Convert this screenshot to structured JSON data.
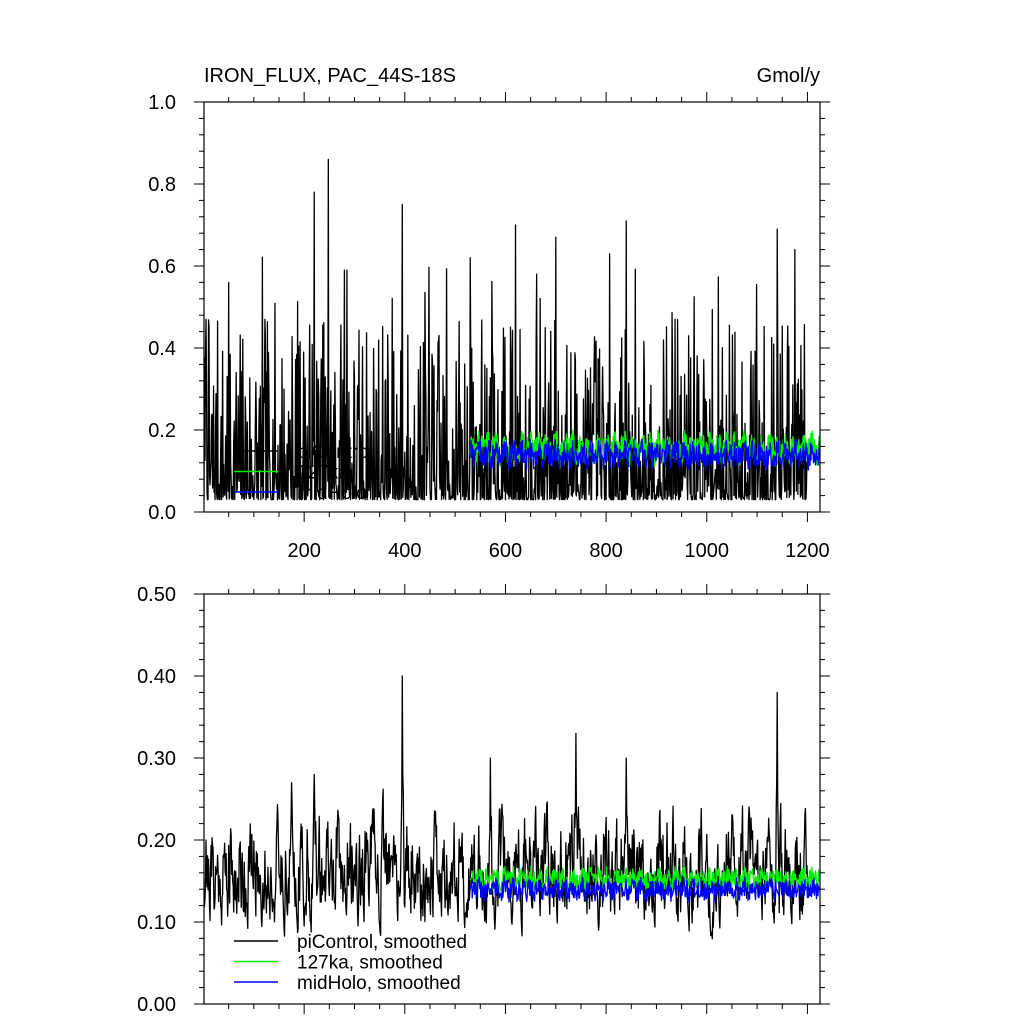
{
  "chart_data": [
    {
      "type": "line",
      "title": "IRON_FLUX, PAC_44S-18S",
      "units": "Gmol/y",
      "xlim": [
        1,
        1225
      ],
      "ylim": [
        0,
        1.0
      ],
      "x_ticks": [
        200,
        400,
        600,
        800,
        1000,
        1200
      ],
      "x_tick_labels": [
        "200",
        "400",
        "600",
        "800",
        "1000",
        "1200"
      ],
      "y_ticks": [
        0,
        0.2,
        0.4,
        0.6,
        0.8,
        1.0
      ],
      "y_tick_labels": [
        "0.0",
        "0.2",
        "0.4",
        "0.6",
        "0.8",
        "1.0"
      ],
      "legend": {
        "placement": "lower-left",
        "entries": [
          {
            "label": "piControl",
            "color": "#000000"
          },
          {
            "label": "127ka",
            "color": "#00ee00"
          },
          {
            "label": "midHolo",
            "color": "#0000ff"
          }
        ]
      },
      "series": [
        {
          "name": "piControl",
          "color": "#000000",
          "x_range": [
            1,
            1200
          ],
          "baseline": 0.09,
          "typical_range": [
            0.03,
            0.45
          ],
          "peaks": [
            [
              5,
              0.47
            ],
            [
              220,
              0.78
            ],
            [
              248,
              0.86
            ],
            [
              280,
              0.59
            ],
            [
              285,
              0.59
            ],
            [
              395,
              0.75
            ],
            [
              530,
              0.62
            ],
            [
              620,
              0.7
            ],
            [
              700,
              0.67
            ],
            [
              840,
              0.71
            ],
            [
              1140,
              0.69
            ],
            [
              1175,
              0.64
            ]
          ]
        },
        {
          "name": "127ka",
          "color": "#00ee00",
          "x_range": [
            530,
            1225
          ],
          "mean": 0.155,
          "amplitude": 0.035
        },
        {
          "name": "midHolo",
          "color": "#0000ff",
          "x_range": [
            530,
            1225
          ],
          "mean": 0.14,
          "amplitude": 0.03
        }
      ]
    },
    {
      "type": "line",
      "xlim": [
        1,
        1225
      ],
      "ylim": [
        0,
        0.5
      ],
      "x_ticks": [
        200,
        400,
        600,
        800,
        1000,
        1200
      ],
      "y_ticks": [
        0,
        0.1,
        0.2,
        0.3,
        0.4,
        0.5
      ],
      "y_tick_labels": [
        "0.00",
        "0.10",
        "0.20",
        "0.30",
        "0.40",
        "0.50"
      ],
      "legend": {
        "placement": "lower-left",
        "entries": [
          {
            "label": "piControl, smoothed",
            "color": "#000000"
          },
          {
            "label": "127ka, smoothed",
            "color": "#00ee00"
          },
          {
            "label": "midHolo, smoothed",
            "color": "#0000ff"
          }
        ]
      },
      "series": [
        {
          "name": "piControl, smoothed",
          "color": "#000000",
          "x_range": [
            1,
            1200
          ],
          "baseline": 0.15,
          "typical_range": [
            0.05,
            0.3
          ],
          "peaks": [
            [
              5,
              0.2
            ],
            [
              175,
              0.27
            ],
            [
              220,
              0.28
            ],
            [
              395,
              0.4
            ],
            [
              570,
              0.3
            ],
            [
              740,
              0.33
            ],
            [
              840,
              0.3
            ],
            [
              1140,
              0.38
            ]
          ]
        },
        {
          "name": "127ka, smoothed",
          "color": "#00ee00",
          "x_range": [
            530,
            1225
          ],
          "mean": 0.153,
          "amplitude": 0.012
        },
        {
          "name": "midHolo, smoothed",
          "color": "#0000ff",
          "x_range": [
            530,
            1225
          ],
          "mean": 0.14,
          "amplitude": 0.012
        }
      ]
    }
  ]
}
